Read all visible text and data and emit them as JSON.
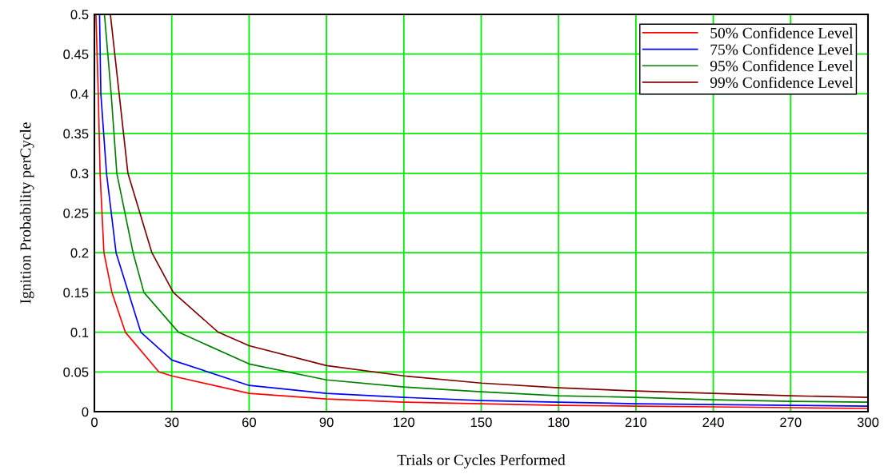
{
  "chart_data": {
    "type": "line",
    "xlabel": "Trials or Cycles Performed",
    "ylabel": "Ignition Probability perCycle",
    "xlim": [
      0,
      300
    ],
    "ylim": [
      0,
      0.5
    ],
    "xticks": [
      0,
      30,
      60,
      90,
      120,
      150,
      180,
      210,
      240,
      270,
      300
    ],
    "yticks": [
      0,
      0.05,
      0.1,
      0.15,
      0.2,
      0.25,
      0.3,
      0.35,
      0.4,
      0.45,
      0.5
    ],
    "grid": true,
    "legend": "top right",
    "series": [
      {
        "name": "50% Confidence Level",
        "color": "#ff0000",
        "x": [
          0.6,
          1.5,
          2.2,
          3.7,
          6.8,
          12,
          25,
          30,
          60,
          90,
          120,
          150,
          180,
          210,
          240,
          270,
          300
        ],
        "values": [
          0.5,
          0.4,
          0.3,
          0.2,
          0.15,
          0.1,
          0.05,
          0.045,
          0.023,
          0.016,
          0.012,
          0.01,
          0.008,
          0.007,
          0.006,
          0.005,
          0.004
        ]
      },
      {
        "name": "75% Confidence Level",
        "color": "#0000ff",
        "x": [
          2,
          2.5,
          4.7,
          8.4,
          18,
          30,
          60,
          90,
          120,
          150,
          180,
          210,
          240,
          270,
          300
        ],
        "values": [
          0.5,
          0.4,
          0.3,
          0.2,
          0.1,
          0.065,
          0.033,
          0.023,
          0.018,
          0.014,
          0.012,
          0.01,
          0.009,
          0.008,
          0.007
        ]
      },
      {
        "name": "95% Confidence Level",
        "color": "#008000",
        "x": [
          3.9,
          6.5,
          8.7,
          15,
          19.2,
          32.6,
          60,
          90,
          120,
          150,
          180,
          210,
          240,
          270,
          300
        ],
        "values": [
          0.5,
          0.4,
          0.3,
          0.2,
          0.15,
          0.1,
          0.06,
          0.04,
          0.031,
          0.025,
          0.02,
          0.018,
          0.015,
          0.013,
          0.012
        ]
      },
      {
        "name": "99% Confidence Level",
        "color": "#800000",
        "x": [
          6.2,
          9.6,
          13,
          22.3,
          30.6,
          48,
          60,
          90,
          120,
          150,
          180,
          210,
          240,
          270,
          300
        ],
        "values": [
          0.5,
          0.4,
          0.3,
          0.2,
          0.15,
          0.1,
          0.083,
          0.058,
          0.045,
          0.036,
          0.03,
          0.026,
          0.023,
          0.02,
          0.018
        ]
      }
    ]
  }
}
